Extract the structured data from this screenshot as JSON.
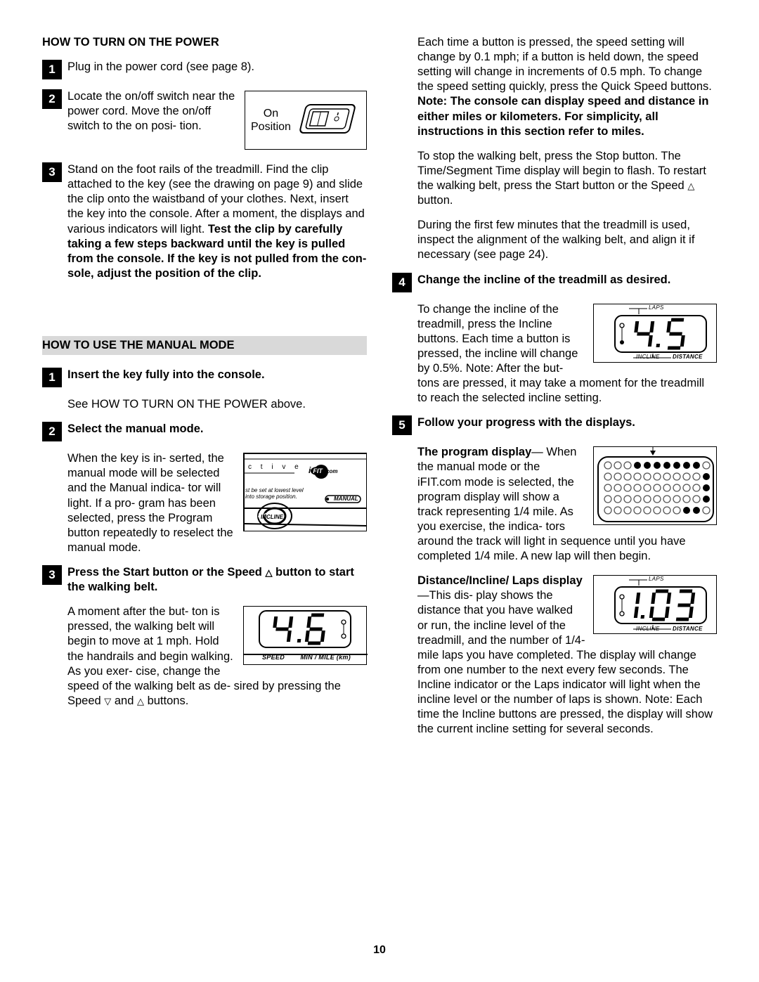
{
  "left": {
    "heading1": "HOW TO TURN ON THE POWER",
    "step1": "Plug in the power cord (see page 8).",
    "step2": "Locate the on/off switch near the power cord. Move the on/off switch to the on posi- tion.",
    "fig_on_label1": "On",
    "fig_on_label2": "Position",
    "step3a": "Stand on the foot rails of the treadmill. Find the clip attached to the key (see the drawing on page 9) and slide the clip onto the waistband of your clothes. Next, insert the key into the console. After a moment, the displays and various indicators will light. ",
    "step3b": "Test the clip by carefully taking a few steps backward until the key is pulled from the console. If the key is not pulled from the con- sole, adjust the position of the clip.",
    "banner": "HOW TO USE THE MANUAL MODE",
    "m1_lead": "Insert the key fully into the console.",
    "m1_body": "See HOW TO TURN ON THE POWER above.",
    "m2_lead": "Select the manual mode.",
    "m2_body": "When the key is in- serted, the manual mode will be selected and the Manual indica- tor will light. If a pro- gram has been selected, press the Program button repeatedly to reselect the manual mode.",
    "m3_lead_a": "Press the Start button or the Speed ",
    "m3_lead_b": " button to start the walking belt.",
    "m3_body_a": "A moment after the but- ton is pressed, the walking belt will begin to move at 1 mph. Hold the handrails and begin walking. As you exer- ",
    "m3_body_b": "cise, change the speed of the walking belt as de- sired by pressing the Speed ",
    "m3_body_c": " and ",
    "m3_body_d": " buttons.",
    "fig_manual_line1": "c  t  i  v  e",
    "fig_manual_ifit": "i FIT.com",
    "fig_manual_sm1": "st be set at lowest level",
    "fig_manual_sm2": "into storage position.",
    "fig_manual_label": "MANUAL",
    "fig_manual_incline": "INCLINE",
    "fig_speed_label_l": "SPEED",
    "fig_speed_label_r": "MIN / MILE (km)",
    "speed_value": "4.6"
  },
  "right": {
    "p1a": "Each time a button is pressed, the speed setting will change by 0.1 mph; if a button is held down, the speed setting will change in increments of 0.5 mph. To change the speed setting quickly, press the Quick Speed buttons. ",
    "p1b": "Note: The console can display speed and distance in either miles or kilometers. For simplicity, all instructions in this section refer to miles.",
    "p2a": "To stop the walking belt, press the Stop button. The Time/Segment Time display will begin to flash. To restart the walking belt, press the Start button or the Speed ",
    "p2b": " button.",
    "p3": "During the first few minutes that the treadmill is used, inspect the alignment of the walking belt, and align it if necessary (see page 24).",
    "m4_lead": "Change the incline of the treadmill as desired.",
    "m4_body": "To change the incline of the treadmill, press the Incline buttons. Each time a button is pressed, the incline will change by 0.5%. Note: After the but- tons are pressed, it may take a moment for the treadmill to reach the selected incline setting.",
    "m5_lead": "Follow your progress with the displays.",
    "m5_p1_lead": "The program display",
    "m5_p1_body": "— When the manual mode or the iFIT.com mode is selected, the program display will show a track representing 1/4 mile. As you exercise, the indica- tors around the track will light in sequence until you have completed 1/4 mile. A new lap will then begin.",
    "m5_p2_lead": "Distance/Incline/ Laps display",
    "m5_p2_body": "—This dis- play shows the distance that you have walked or run, the incline level of the treadmill, and the number of 1/4-mile laps you have completed. The display will change from one number to the next every few seconds. The Incline indicator or the Laps indicator will light when the incline level or the number of laps is shown. Note: Each time the Incline buttons are pressed, the display will show the current incline setting for several seconds.",
    "fig_laps": "LAPS",
    "fig_incline": "INCLINE",
    "fig_distance": "DISTANCE",
    "incline_value": "4.5",
    "laps_value": "1.03"
  },
  "page_number": "10",
  "style": {
    "segment_on": "#000000",
    "box_border": "#000000",
    "dot_fill": "#000000",
    "dot_empty_stroke": "#444444"
  }
}
